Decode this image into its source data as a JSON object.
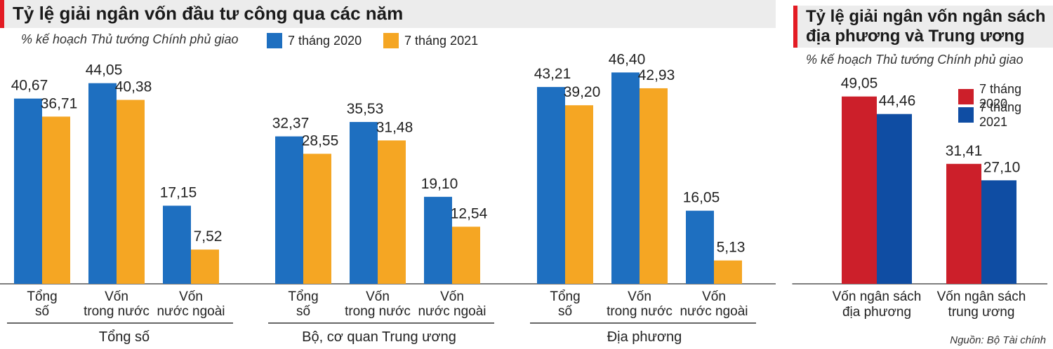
{
  "chart_data": [
    {
      "type": "bar",
      "title": "Tỷ lệ giải ngân vốn đầu tư công qua các năm",
      "subtitle": "% kế hoạch Thủ tướng Chính phủ giao",
      "series": [
        {
          "name": "7 tháng 2020",
          "color": "#1e6fc0"
        },
        {
          "name": "7 tháng 2021",
          "color": "#f5a623"
        }
      ],
      "groups": [
        {
          "label": "Tổng số",
          "categories": [
            [
              "Tổng",
              "số"
            ],
            [
              "Vốn",
              "trong nước"
            ],
            [
              "Vốn",
              "nước ngoài"
            ]
          ],
          "values_2020": [
            40.67,
            44.05,
            17.15
          ],
          "values_2021": [
            36.71,
            40.38,
            7.52
          ],
          "labels_2020": [
            "40,67",
            "44,05",
            "17,15"
          ],
          "labels_2021": [
            "36,71",
            "40,38",
            "7,52"
          ]
        },
        {
          "label": "Bộ, cơ quan Trung ương",
          "categories": [
            [
              "Tổng",
              "số"
            ],
            [
              "Vốn",
              "trong nước"
            ],
            [
              "Vốn",
              "nước ngoài"
            ]
          ],
          "values_2020": [
            32.37,
            35.53,
            19.1
          ],
          "values_2021": [
            28.55,
            31.48,
            12.54
          ],
          "labels_2020": [
            "32,37",
            "35,53",
            "19,10"
          ],
          "labels_2021": [
            "28,55",
            "31,48",
            "12,54"
          ]
        },
        {
          "label": "Địa phương",
          "categories": [
            [
              "Tổng",
              "số"
            ],
            [
              "Vốn",
              "trong nước"
            ],
            [
              "Vốn",
              "nước ngoài"
            ]
          ],
          "values_2020": [
            43.21,
            46.4,
            16.05
          ],
          "values_2021": [
            39.2,
            42.93,
            5.13
          ],
          "labels_2020": [
            "43,21",
            "46,40",
            "16,05"
          ],
          "labels_2021": [
            "39,20",
            "42,93",
            "5,13"
          ]
        }
      ],
      "ylim": [
        0,
        50
      ]
    },
    {
      "type": "bar",
      "title_lines": [
        "Tỷ lệ giải ngân vốn ngân sách",
        "địa phương và Trung ương"
      ],
      "subtitle": "% kế hoạch Thủ tướng Chính phủ giao",
      "series": [
        {
          "name": "7 tháng 2020",
          "color": "#cc1f2a"
        },
        {
          "name": "7 tháng 2021",
          "color": "#0f4da3"
        }
      ],
      "categories": [
        [
          "Vốn ngân sách",
          "địa phương"
        ],
        [
          "Vốn ngân sách",
          "trung ương"
        ]
      ],
      "values_2020": [
        49.05,
        31.41
      ],
      "values_2021": [
        44.46,
        27.1
      ],
      "labels_2020": [
        "49,05",
        "31,41"
      ],
      "labels_2021": [
        "44,46",
        "27,10"
      ],
      "ylim": [
        0,
        55
      ],
      "source": "Nguồn: Bộ Tài chính"
    }
  ]
}
